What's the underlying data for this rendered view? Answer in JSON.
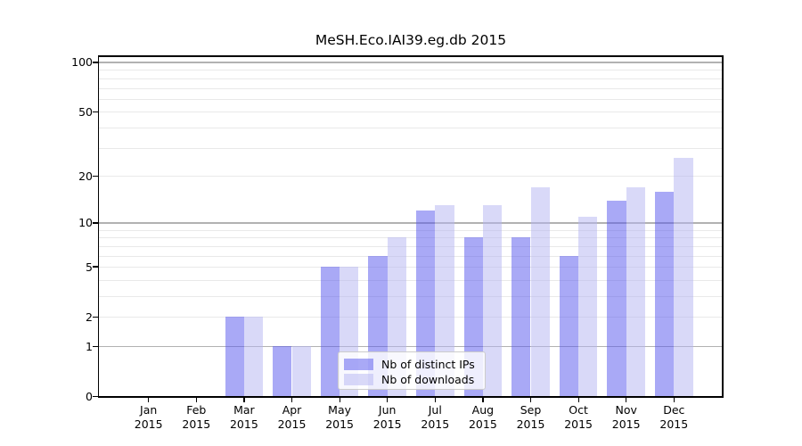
{
  "title": "MeSH.Eco.IAI39.eg.db 2015",
  "legend": {
    "items": [
      {
        "label": "Nb of distinct IPs"
      },
      {
        "label": "Nb of downloads"
      }
    ]
  },
  "colors": {
    "bar_distinct_ips": "rgba(84,84,238,0.5)",
    "bar_downloads": "rgba(179,179,242,0.5)",
    "grid_major": "#b2b2b2",
    "grid_minor": "#e9e9e9",
    "axis": "#000000",
    "legend_border": "#cccccc",
    "background": "#ffffff"
  },
  "chart_data": {
    "type": "bar",
    "title": "MeSH.Eco.IAI39.eg.db 2015",
    "categories": [
      "Jan 2015",
      "Feb 2015",
      "Mar 2015",
      "Apr 2015",
      "May 2015",
      "Jun 2015",
      "Jul 2015",
      "Aug 2015",
      "Sep 2015",
      "Oct 2015",
      "Nov 2015",
      "Dec 2015"
    ],
    "series": [
      {
        "name": "Nb of distinct IPs",
        "values": [
          0,
          0,
          2,
          1,
          5,
          6,
          12,
          8,
          8,
          6,
          14,
          16
        ]
      },
      {
        "name": "Nb of downloads",
        "values": [
          0,
          0,
          2,
          1,
          5,
          8,
          13,
          13,
          17,
          11,
          17,
          26
        ]
      }
    ],
    "xlabel": "",
    "ylabel": "",
    "yscale": "log1p",
    "ylim": [
      0,
      110
    ],
    "yticks_labeled": [
      0,
      1,
      2,
      5,
      10,
      20,
      50,
      100
    ],
    "gridlines_major": [
      1,
      10,
      100
    ],
    "gridlines_minor": [
      2,
      3,
      4,
      5,
      6,
      7,
      8,
      9,
      20,
      30,
      40,
      50,
      60,
      70,
      80,
      90
    ],
    "grid": "on",
    "legend_position": "lower center inside plot"
  }
}
